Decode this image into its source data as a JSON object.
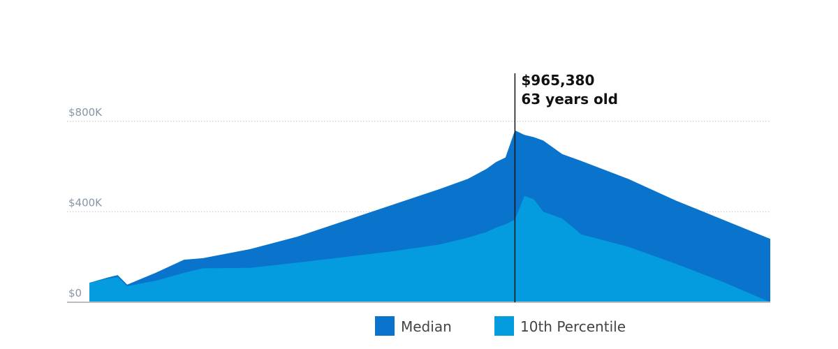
{
  "chart_data": {
    "type": "area",
    "x": [
      18,
      20,
      21,
      22,
      25,
      28,
      30,
      35,
      40,
      45,
      50,
      55,
      58,
      60,
      61,
      62,
      63,
      64,
      65,
      66,
      68,
      70,
      75,
      80,
      85,
      90
    ],
    "xlim": [
      18,
      90
    ],
    "series": [
      {
        "name": "Median",
        "color": "#0a74cc",
        "values": [
          86000,
          110000,
          120000,
          78000,
          130000,
          188000,
          195000,
          235000,
          290000,
          360000,
          430000,
          500000,
          545000,
          590000,
          620000,
          640000,
          760000,
          740000,
          730000,
          715000,
          655000,
          625000,
          545000,
          450000,
          365000,
          280000
        ]
      },
      {
        "name": "10th Percentile",
        "color": "#049cdf",
        "values": [
          86000,
          105000,
          111000,
          71000,
          95000,
          130000,
          150000,
          152000,
          175000,
          200000,
          225000,
          255000,
          285000,
          310000,
          330000,
          345000,
          365000,
          470000,
          455000,
          400000,
          370000,
          300000,
          245000,
          170000,
          90000,
          0
        ]
      }
    ],
    "ylim": [
      0,
      1000000
    ],
    "yticks": [
      {
        "value": 0,
        "label": "$0"
      },
      {
        "value": 400000,
        "label": "$400K"
      },
      {
        "value": 800000,
        "label": "$800K"
      }
    ],
    "grid": true,
    "annotation": {
      "x": 63,
      "lines": [
        "$965,380",
        "63 years old"
      ]
    },
    "legend": "bottom"
  }
}
